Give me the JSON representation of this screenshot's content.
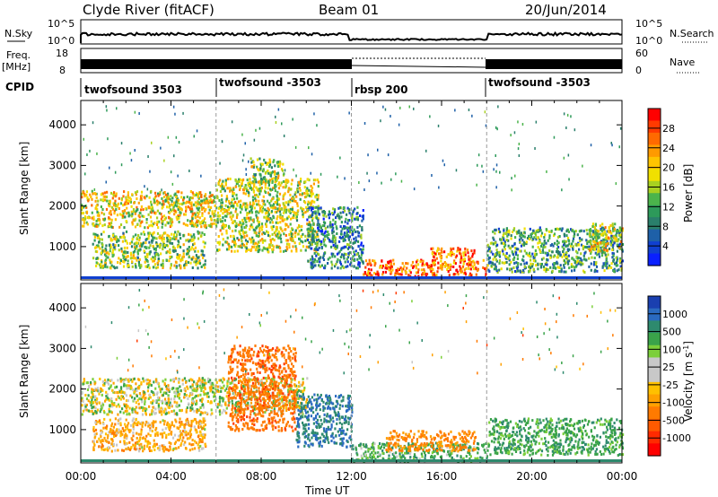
{
  "header": {
    "station": "Clyde River (fitACF)",
    "beam": "Beam 01",
    "date": "20/Jun/2014"
  },
  "top_panel": {
    "left_label": "N.Sky",
    "right_label": "N.Search",
    "left_ticks": [
      "10^5",
      "10^0"
    ],
    "right_ticks": [
      "10^5",
      "10^0"
    ]
  },
  "freq_panel": {
    "left_label": "Freq.",
    "left_unit": "[MHz]",
    "right_label": "Nave",
    "left_ticks": [
      "18",
      "8"
    ],
    "right_ticks": [
      "60",
      "0"
    ]
  },
  "cpid": {
    "label": "CPID",
    "segments": [
      {
        "label": "twofsound 3503",
        "start": 0,
        "end": 6
      },
      {
        "label": "twofsound -3503",
        "start": 6,
        "end": 12
      },
      {
        "label": "rbsp 200",
        "start": 12,
        "end": 18
      },
      {
        "label": "twofsound -3503",
        "start": 18,
        "end": 24
      }
    ]
  },
  "axes": {
    "xlabel": "Time UT",
    "xticks": [
      "00:00",
      "04:00",
      "08:00",
      "12:00",
      "16:00",
      "20:00",
      "00:00"
    ],
    "ylabel": "Slant Range [km]",
    "yticks": [
      "1000",
      "2000",
      "3000",
      "4000"
    ]
  },
  "power_colorbar": {
    "label": "Power [dB]",
    "ticks": [
      "28",
      "24",
      "20",
      "16",
      "12",
      "8",
      "4"
    ],
    "colors": [
      "#ff0000",
      "#ff3a00",
      "#ff6a00",
      "#ff9a00",
      "#ffc400",
      "#f0e000",
      "#a8d020",
      "#4bb44b",
      "#2d9a5a",
      "#2a7f6b",
      "#1e60a8",
      "#1040d0",
      "#0a20ff"
    ]
  },
  "velocity_colorbar": {
    "label": "Velocity [m s^-1]",
    "ticks": [
      "1000",
      "500",
      "100",
      "25",
      "-25",
      "-100",
      "-500",
      "-1000"
    ],
    "colors": [
      "#1a3fb0",
      "#2a6ac0",
      "#2e8a6e",
      "#3aa34a",
      "#7ccf3a",
      "#c8c8c8",
      "#c8c8c8",
      "#ffc000",
      "#ffa000",
      "#ff7a00",
      "#ff5a00",
      "#ff2a00",
      "#ff0000"
    ]
  },
  "chart_data": [
    {
      "type": "heatmap",
      "title": "",
      "xlabel": "Time UT",
      "ylabel": "Slant Range [km]",
      "xlim": [
        0,
        24
      ],
      "ylim": [
        180,
        4600
      ],
      "colorbar": "Power [dB]",
      "regions": [
        {
          "t0": 0.0,
          "t1": 6.0,
          "r0": 1500,
          "r1": 2400,
          "power": 18
        },
        {
          "t0": 0.5,
          "t1": 5.5,
          "r0": 500,
          "r1": 1400,
          "power": 14
        },
        {
          "t0": 6.0,
          "t1": 10.5,
          "r0": 900,
          "r1": 2700,
          "power": 16
        },
        {
          "t0": 7.5,
          "t1": 9.0,
          "r0": 2600,
          "r1": 3200,
          "power": 14
        },
        {
          "t0": 10.0,
          "t1": 12.5,
          "r0": 500,
          "r1": 2000,
          "power": 8
        },
        {
          "t0": 12.5,
          "t1": 18.0,
          "r0": 300,
          "r1": 700,
          "power": 26
        },
        {
          "t0": 15.5,
          "t1": 17.5,
          "r0": 700,
          "r1": 1000,
          "power": 25
        },
        {
          "t0": 18.0,
          "t1": 24.0,
          "r0": 400,
          "r1": 1500,
          "power": 10
        },
        {
          "t0": 22.5,
          "t1": 24.0,
          "r0": 900,
          "r1": 1600,
          "power": 18
        }
      ]
    },
    {
      "type": "heatmap",
      "title": "",
      "xlabel": "Time UT",
      "ylabel": "Slant Range [km]",
      "xlim": [
        0,
        24
      ],
      "ylim": [
        180,
        4600
      ],
      "colorbar": "Velocity [m s^-1]",
      "regions": [
        {
          "t0": 0.0,
          "t1": 10.0,
          "r0": 1400,
          "r1": 2300,
          "velocity": 0
        },
        {
          "t0": 0.5,
          "t1": 5.5,
          "r0": 500,
          "r1": 1300,
          "velocity": -100
        },
        {
          "t0": 6.5,
          "t1": 9.5,
          "r0": 1000,
          "r1": 3100,
          "velocity": -300
        },
        {
          "t0": 9.5,
          "t1": 12.0,
          "r0": 600,
          "r1": 1900,
          "velocity": 400
        },
        {
          "t0": 12.0,
          "t1": 18.0,
          "r0": 250,
          "r1": 700,
          "velocity": 120
        },
        {
          "t0": 13.5,
          "t1": 17.5,
          "r0": 500,
          "r1": 1000,
          "velocity": -200
        },
        {
          "t0": 18.0,
          "t1": 24.0,
          "r0": 400,
          "r1": 1300,
          "velocity": 150
        }
      ]
    }
  ]
}
